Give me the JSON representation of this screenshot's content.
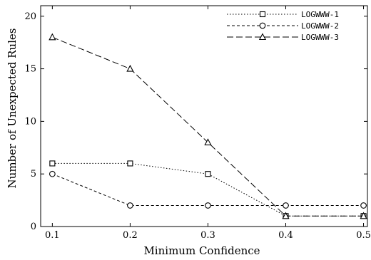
{
  "chart_data": {
    "type": "line",
    "xlabel": "Minimum Confidence",
    "ylabel": "Number of Unexpected Rules",
    "x": [
      0.1,
      0.2,
      0.3,
      0.4,
      0.5
    ],
    "x_ticks": [
      "0.1",
      "0.2",
      "0.3",
      "0.4",
      "0.5"
    ],
    "y_ticks": [
      "0",
      "5",
      "10",
      "15",
      "20"
    ],
    "xlim": [
      0.085,
      0.505
    ],
    "ylim": [
      0,
      21
    ],
    "grid": false,
    "legend_position": "top-right",
    "series": [
      {
        "name": "LOGWWW-1",
        "values": [
          6,
          6,
          5,
          1,
          1
        ],
        "marker": "square",
        "dash": "dotted",
        "color": "#000000"
      },
      {
        "name": "LOGWWW-2",
        "values": [
          5,
          2,
          2,
          2,
          2
        ],
        "marker": "circle",
        "dash": "dashed",
        "color": "#000000"
      },
      {
        "name": "LOGWWW-3",
        "values": [
          18,
          15,
          8,
          1,
          1
        ],
        "marker": "triangle",
        "dash": "long-dashed",
        "color": "#000000"
      }
    ]
  }
}
